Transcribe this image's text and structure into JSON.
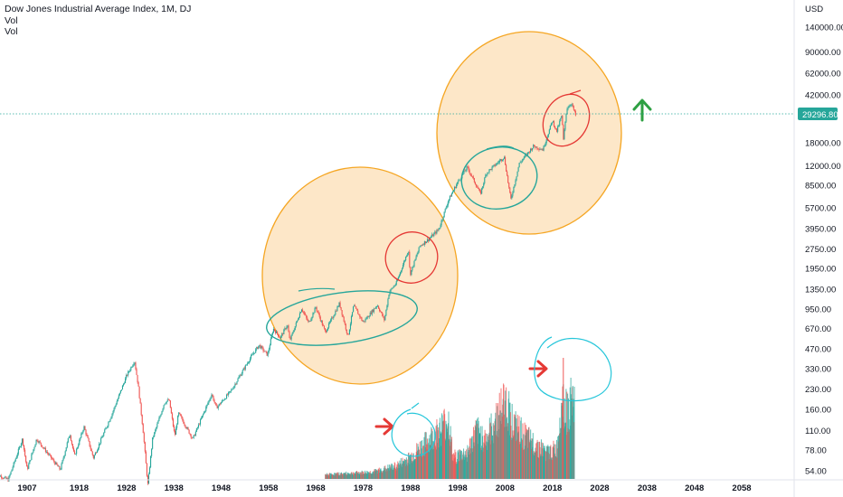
{
  "legend": {
    "title": "Dow Jones Industrial Average Index, 1M, DJ",
    "line2": "Vol",
    "line3": "Vol"
  },
  "colors": {
    "up": "#26a69a",
    "down": "#ef5350",
    "circle_fill": "#fde4c2",
    "circle_stroke": "#f5a623",
    "red_marker": "#e53935",
    "cyan_marker": "#26c6da",
    "green_arrow": "#2ea043",
    "price_line": "#26a69a"
  },
  "chart_data": {
    "type": "candlestick",
    "title": "Dow Jones Industrial Average Index, 1M, DJ",
    "y_scale": "log",
    "y_unit": "USD",
    "y_ticks": [
      "140000.00",
      "90000.00",
      "62000.00",
      "42000.00",
      "18000.00",
      "12000.00",
      "8500.00",
      "5700.00",
      "3950.00",
      "2750.00",
      "1950.00",
      "1350.00",
      "950.00",
      "670.00",
      "470.00",
      "330.00",
      "230.00",
      "160.00",
      "110.00",
      "78.00",
      "54.00"
    ],
    "x_ticks": [
      "1907",
      "1918",
      "1928",
      "1938",
      "1948",
      "1958",
      "1968",
      "1978",
      "1988",
      "1998",
      "2008",
      "2018",
      "2028",
      "2038",
      "2048",
      "2058"
    ],
    "last_price": "29296.80",
    "price_path": [
      [
        1900,
        52
      ],
      [
        1903,
        46
      ],
      [
        1906,
        95
      ],
      [
        1907,
        55
      ],
      [
        1909,
        95
      ],
      [
        1914,
        55
      ],
      [
        1916,
        105
      ],
      [
        1917,
        70
      ],
      [
        1919,
        118
      ],
      [
        1921,
        68
      ],
      [
        1925,
        150
      ],
      [
        1928,
        290
      ],
      [
        1929.7,
        380
      ],
      [
        1930.5,
        240
      ],
      [
        1931.5,
        110
      ],
      [
        1932.5,
        42
      ],
      [
        1933.5,
        95
      ],
      [
        1936,
        180
      ],
      [
        1937,
        190
      ],
      [
        1938.2,
        100
      ],
      [
        1939,
        150
      ],
      [
        1942,
        95
      ],
      [
        1946,
        210
      ],
      [
        1947,
        165
      ],
      [
        1950,
        220
      ],
      [
        1954,
        390
      ],
      [
        1956,
        500
      ],
      [
        1957.8,
        420
      ],
      [
        1959,
        670
      ],
      [
        1960.5,
        570
      ],
      [
        1962,
        720
      ],
      [
        1962.5,
        540
      ],
      [
        1965,
        960
      ],
      [
        1966.5,
        740
      ],
      [
        1968,
        980
      ],
      [
        1970,
        630
      ],
      [
        1973,
        1050
      ],
      [
        1974.8,
        580
      ],
      [
        1976,
        1010
      ],
      [
        1978,
        750
      ],
      [
        1981,
        1020
      ],
      [
        1982.5,
        780
      ],
      [
        1983.5,
        1280
      ],
      [
        1985,
        1500
      ],
      [
        1987.6,
        2720
      ],
      [
        1987.9,
        1740
      ],
      [
        1990,
        2900
      ],
      [
        1992,
        3300
      ],
      [
        1994,
        3900
      ],
      [
        1996,
        6500
      ],
      [
        1998,
        9000
      ],
      [
        2000,
        11700
      ],
      [
        2002.8,
        7300
      ],
      [
        2004,
        10500
      ],
      [
        2007.8,
        14100
      ],
      [
        2009.2,
        6600
      ],
      [
        2011,
        12500
      ],
      [
        2014,
        17000
      ],
      [
        2016,
        16000
      ],
      [
        2018,
        26800
      ],
      [
        2018.9,
        22000
      ],
      [
        2020,
        29500
      ],
      [
        2020.3,
        18600
      ],
      [
        2021,
        33000
      ],
      [
        2022,
        36500
      ],
      [
        2022.9,
        29296.8
      ]
    ],
    "volume_bars": {
      "start_year": 1970,
      "end_year": 2022.7,
      "relative_profile": [
        [
          1970,
          0.05
        ],
        [
          1980,
          0.08
        ],
        [
          1985,
          0.15
        ],
        [
          1988,
          0.25
        ],
        [
          1990,
          0.35
        ],
        [
          1994,
          0.55
        ],
        [
          1996,
          0.7
        ],
        [
          1997,
          0.25
        ],
        [
          2000,
          0.3
        ],
        [
          2002,
          0.55
        ],
        [
          2004,
          0.45
        ],
        [
          2008,
          0.9
        ],
        [
          2010,
          0.6
        ],
        [
          2013,
          0.45
        ],
        [
          2017,
          0.3
        ],
        [
          2019,
          0.35
        ],
        [
          2020,
          1.0
        ],
        [
          2021,
          0.75
        ],
        [
          2022,
          0.9
        ]
      ]
    },
    "annotations": [
      "orange-circle-mid-century",
      "orange-circle-modern",
      "teal-consolidation-oval-1960s-1980s",
      "red-breakout-oval-1990s",
      "teal-consolidation-oval-2000s",
      "red-breakout-oval-2020s",
      "green-up-arrow",
      "red-arrow-volume-1",
      "red-arrow-volume-2",
      "cyan-volume-circle-1",
      "cyan-volume-circle-2"
    ]
  }
}
